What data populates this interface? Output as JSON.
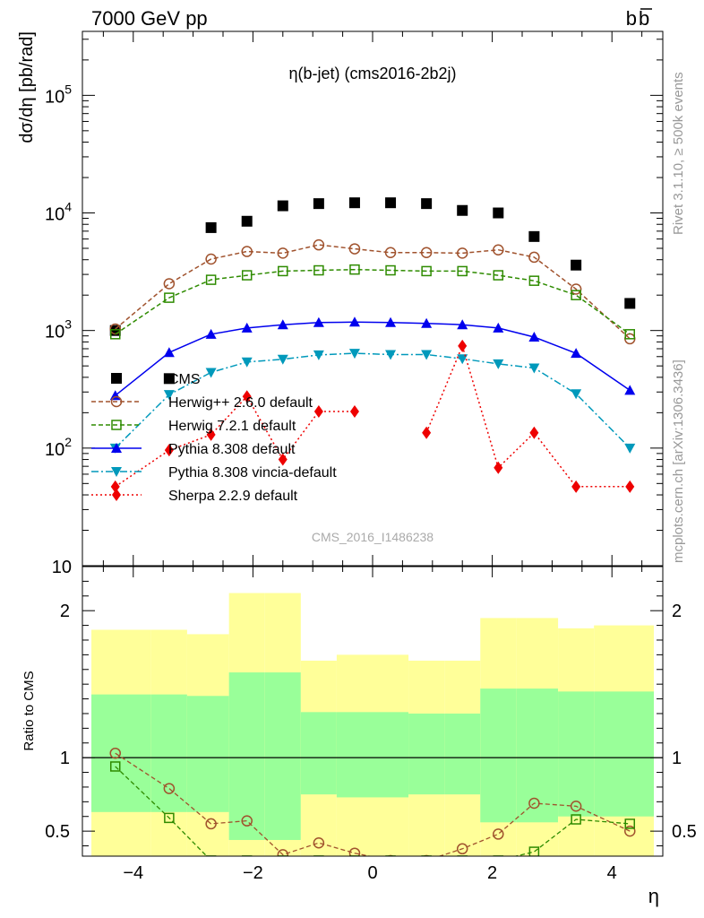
{
  "header": {
    "left": "7000 GeV pp",
    "right_main": "b",
    "right_bar": "b"
  },
  "side_labels": {
    "top": "Rivet 3.1.10, ≥ 500k events",
    "bottom": "mcplots.cern.ch [arXiv:1306.3436]"
  },
  "chart_data": [
    {
      "type": "scatter",
      "title": "η(b-jet) (cms2016-2b2j)",
      "watermark": "CMS_2016_I1486238",
      "xlabel": "η",
      "ylabel": "dσ/dη [pb/rad]",
      "xlim": [
        -4.85,
        4.85
      ],
      "ylim": [
        10,
        350000
      ],
      "log_y": true,
      "y_ticks": [
        {
          "value": 10,
          "label": "10"
        },
        {
          "value": 100,
          "label": "10^2"
        },
        {
          "value": 1000,
          "label": "10^3"
        },
        {
          "value": 10000,
          "label": "10^4"
        },
        {
          "value": 100000,
          "label": "10^5"
        }
      ],
      "legend_position": "middle-left",
      "x_bins": [
        -4.3,
        -3.4,
        -2.7,
        -2.1,
        -1.5,
        -0.9,
        -0.3,
        0.3,
        0.9,
        1.5,
        2.1,
        2.7,
        3.4,
        4.3
      ],
      "series": [
        {
          "name": "CMS",
          "color": "#000000",
          "marker": "square-filled",
          "line": "none",
          "values": [
            1000,
            390,
            7500,
            8500,
            11500,
            12000,
            12200,
            12200,
            12000,
            10500,
            10000,
            6300,
            3600,
            1700
          ]
        },
        {
          "name": "Herwig++ 2.6.0 default",
          "color": "#a0522d",
          "marker": "circle-open",
          "line": "dashed",
          "values": [
            1030,
            2500,
            4050,
            4700,
            4550,
            5350,
            4950,
            4600,
            4600,
            4550,
            4850,
            4200,
            2250,
            850
          ]
        },
        {
          "name": "Herwig 7.2.1 default",
          "color": "#2e8b00",
          "marker": "square-open",
          "line": "dashed",
          "values": [
            930,
            1900,
            2700,
            2950,
            3200,
            3250,
            3300,
            3250,
            3200,
            3200,
            2950,
            2650,
            2000,
            930
          ]
        },
        {
          "name": "Pythia 8.308 default",
          "color": "#0000ee",
          "marker": "triangle-up",
          "line": "solid",
          "values": [
            280,
            650,
            930,
            1050,
            1120,
            1170,
            1180,
            1170,
            1150,
            1120,
            1050,
            880,
            640,
            310
          ]
        },
        {
          "name": "Pythia 8.308 vincia-default",
          "color": "#0099bb",
          "marker": "triangle-down",
          "line": "dashdot",
          "values": [
            100,
            285,
            440,
            540,
            570,
            620,
            640,
            625,
            625,
            575,
            520,
            480,
            290,
            100
          ]
        },
        {
          "name": "Sherpa 2.2.9 default",
          "color": "#ee0000",
          "marker": "diamond",
          "line": "dotted",
          "values": [
            47,
            96,
            130,
            275,
            80,
            205,
            205,
            null,
            135,
            740,
            68,
            135,
            47,
            47
          ]
        }
      ]
    },
    {
      "type": "scatter",
      "xlabel": "η",
      "ylabel": "Ratio to CMS",
      "xlim": [
        -4.85,
        4.85
      ],
      "ylim": [
        0.33,
        2.3
      ],
      "x_ticks": [
        -4,
        -2,
        0,
        2,
        4
      ],
      "y_ticks": [
        0.5,
        1,
        2
      ],
      "reference_line": 1,
      "bands": {
        "edges": [
          -4.7,
          -3.7,
          -3.1,
          -2.4,
          -1.8,
          -1.2,
          -0.6,
          0.0,
          0.6,
          1.2,
          1.8,
          2.4,
          3.1,
          3.7,
          4.7
        ],
        "yellow_upper": [
          1.87,
          1.87,
          1.84,
          2.12,
          2.12,
          1.66,
          1.7,
          1.7,
          1.66,
          1.66,
          1.95,
          1.95,
          1.88,
          1.9
        ],
        "yellow_lower": [
          0.3,
          0.3,
          0.3,
          0.3,
          0.3,
          0.3,
          0.3,
          0.3,
          0.3,
          0.3,
          0.3,
          0.3,
          0.3,
          0.3
        ],
        "green_upper": [
          1.43,
          1.43,
          1.42,
          1.58,
          1.58,
          1.31,
          1.31,
          1.31,
          1.3,
          1.3,
          1.47,
          1.47,
          1.45,
          1.45
        ],
        "green_lower": [
          0.63,
          0.63,
          0.63,
          0.44,
          0.44,
          0.75,
          0.73,
          0.73,
          0.75,
          0.75,
          0.56,
          0.56,
          0.6,
          0.6
        ]
      },
      "series": [
        {
          "name": "Herwig++ 2.6.0 default",
          "color": "#a0522d",
          "marker": "circle-open",
          "values": [
            1.03,
            0.79,
            0.55,
            0.57,
            0.34,
            0.42,
            0.35,
            0.3,
            0.3,
            0.38,
            0.48,
            0.69,
            0.67,
            0.5
          ]
        },
        {
          "name": "Herwig 7.2.1 default",
          "color": "#2e8b00",
          "marker": "square-open",
          "values": [
            0.94,
            0.59,
            0.3,
            0.3,
            0.3,
            0.3,
            0.3,
            0.3,
            0.3,
            0.3,
            0.3,
            0.36,
            0.58,
            0.55
          ]
        }
      ]
    }
  ]
}
